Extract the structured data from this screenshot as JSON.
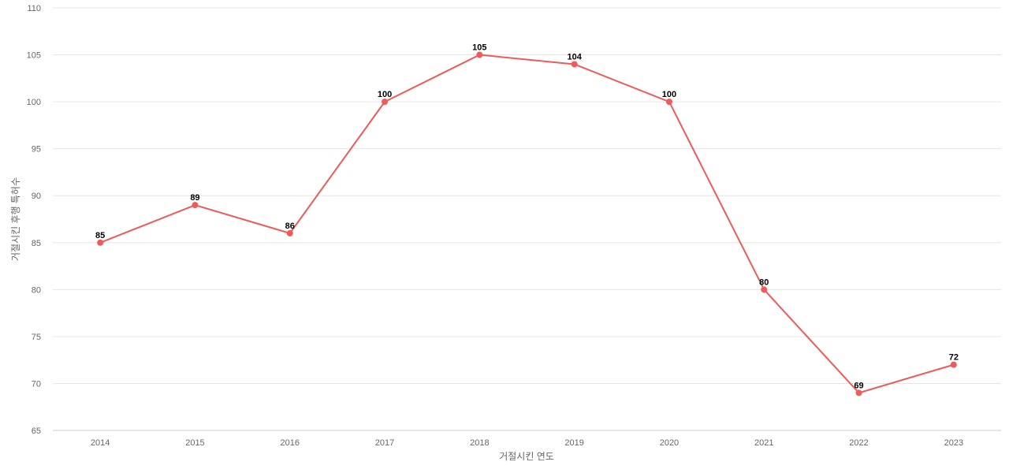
{
  "chart_data": {
    "type": "line",
    "title": "",
    "xlabel": "거절시킨 연도",
    "ylabel": "거절시킨 후행 특허수",
    "categories": [
      "2014",
      "2015",
      "2016",
      "2017",
      "2018",
      "2019",
      "2020",
      "2021",
      "2022",
      "2023"
    ],
    "series": [
      {
        "values": [
          85,
          89,
          86,
          100,
          105,
          104,
          100,
          80,
          69,
          72
        ]
      }
    ],
    "ylim": [
      65,
      110
    ],
    "yticks": [
      65,
      70,
      75,
      80,
      85,
      90,
      95,
      100,
      105,
      110
    ],
    "grid": true,
    "legend": "none",
    "data_labels": true,
    "colors": {
      "line": "#ef5a5a",
      "grid": "#e6e6e6",
      "tick_text": "#666666",
      "data_label": "#000000"
    }
  }
}
